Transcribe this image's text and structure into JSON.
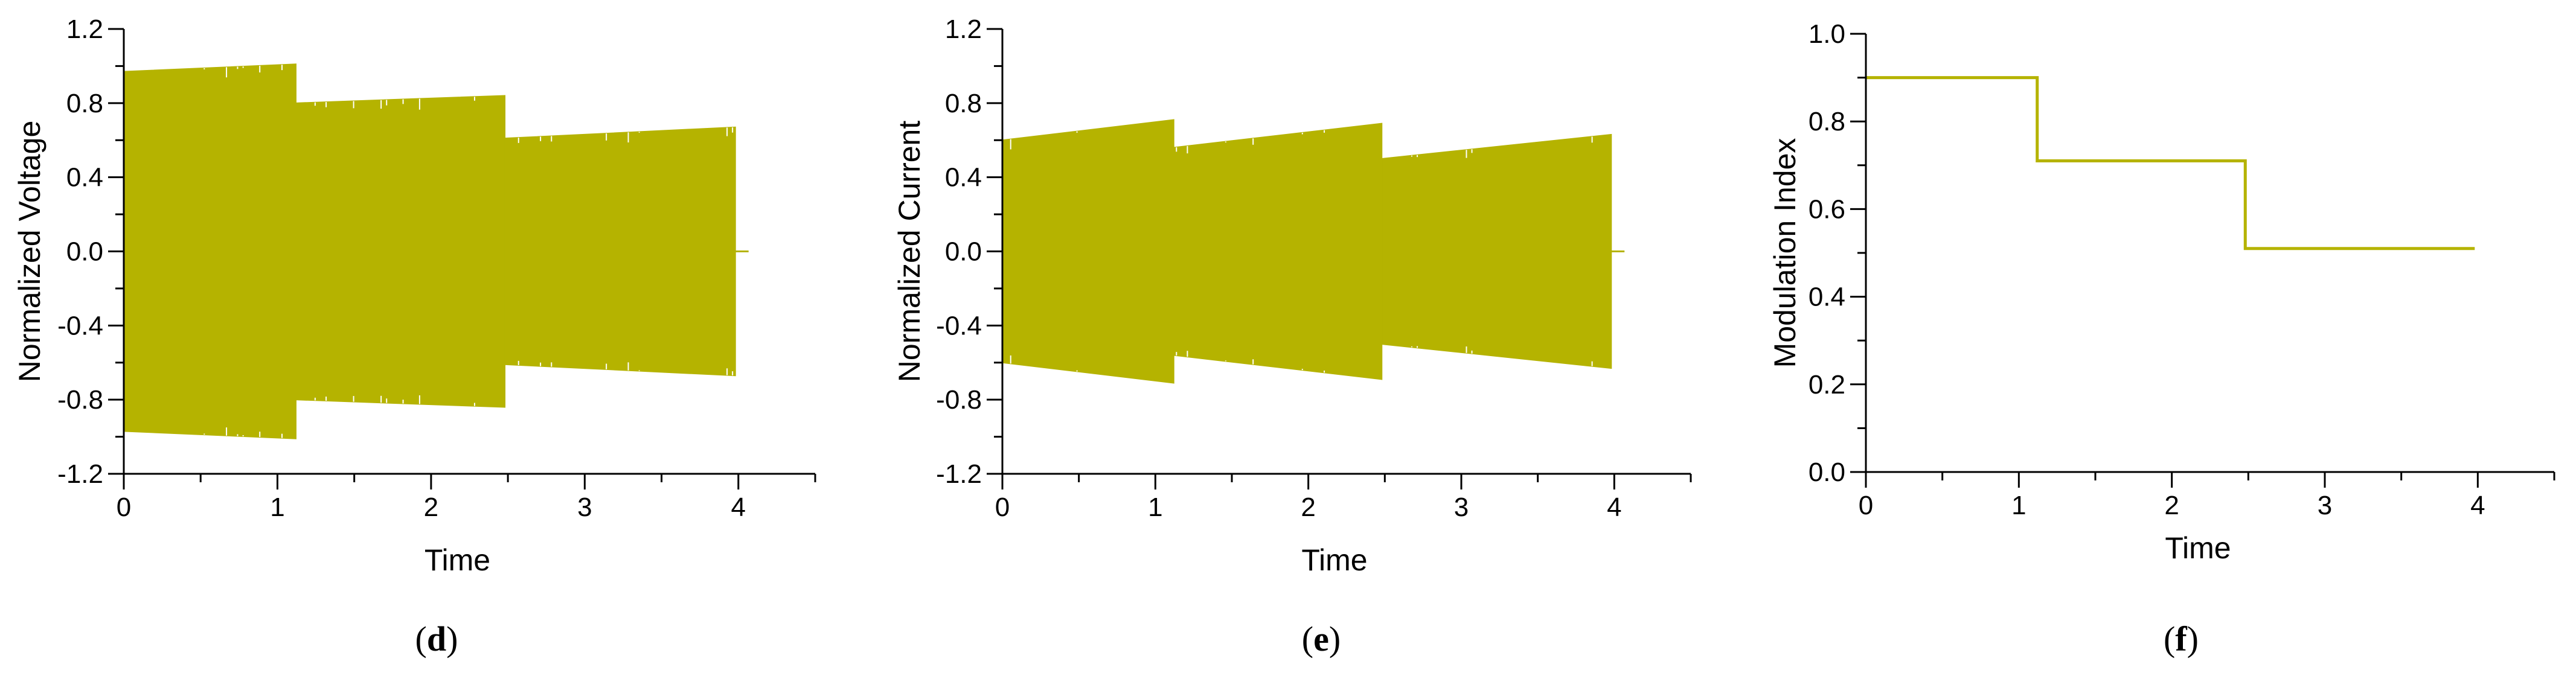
{
  "colors": {
    "series": "#b5b300",
    "axis": "#000000",
    "background": "#ffffff"
  },
  "chart_data": [
    {
      "type": "line",
      "panel_label": "d",
      "xlabel": "Time",
      "ylabel": "Normalized Voltage",
      "xlim": [
        0,
        4.5
      ],
      "ylim": [
        -1.2,
        1.2
      ],
      "xticks": [
        0,
        1,
        2,
        3,
        4
      ],
      "yticks": [
        -1.2,
        -0.8,
        -0.4,
        0.0,
        0.4,
        0.8,
        1.2
      ],
      "ytick_labels": [
        "-1.2",
        "-0.8",
        "-0.4",
        "0.0",
        "0.4",
        "0.8",
        "1.2"
      ],
      "grid": false,
      "series": [
        {
          "style": "oscillating envelope (filled)",
          "segments": [
            {
              "t_start": 0.0,
              "t_end": 1.12,
              "amp_start": 0.97,
              "amp_end": 1.01
            },
            {
              "t_start": 1.12,
              "t_end": 2.48,
              "amp_start": 0.8,
              "amp_end": 0.84
            },
            {
              "t_start": 2.48,
              "t_end": 3.98,
              "amp_start": 0.61,
              "amp_end": 0.67
            }
          ]
        }
      ]
    },
    {
      "type": "line",
      "panel_label": "e",
      "xlabel": "Time",
      "ylabel": "Normalized Current",
      "xlim": [
        0,
        4.5
      ],
      "ylim": [
        -1.2,
        1.2
      ],
      "xticks": [
        0,
        1,
        2,
        3,
        4
      ],
      "yticks": [
        -1.2,
        -0.8,
        -0.4,
        0.0,
        0.4,
        0.8,
        1.2
      ],
      "ytick_labels": [
        "-1.2",
        "-0.8",
        "-0.4",
        "0.0",
        "0.4",
        "0.8",
        "1.2"
      ],
      "grid": false,
      "series": [
        {
          "style": "oscillating envelope (filled)",
          "segments": [
            {
              "t_start": 0.0,
              "t_end": 1.12,
              "amp_start": 0.6,
              "amp_end": 0.71
            },
            {
              "t_start": 1.12,
              "t_end": 2.48,
              "amp_start": 0.56,
              "amp_end": 0.69
            },
            {
              "t_start": 2.48,
              "t_end": 3.98,
              "amp_start": 0.5,
              "amp_end": 0.63
            }
          ]
        }
      ]
    },
    {
      "type": "line",
      "panel_label": "f",
      "xlabel": "Time",
      "ylabel": "Modulation Index",
      "xlim": [
        0,
        4.5
      ],
      "ylim": [
        0,
        1.0
      ],
      "xticks": [
        0,
        1,
        2,
        3,
        4
      ],
      "yticks": [
        0.0,
        0.2,
        0.4,
        0.6,
        0.8,
        1.0
      ],
      "ytick_labels": [
        "0.0",
        "0.2",
        "0.4",
        "0.6",
        "0.8",
        "1.0"
      ],
      "grid": false,
      "series": [
        {
          "style": "step",
          "x": [
            0,
            1.12,
            1.12,
            2.48,
            2.48,
            3.98
          ],
          "y": [
            0.9,
            0.9,
            0.71,
            0.71,
            0.51,
            0.51
          ]
        }
      ]
    }
  ]
}
